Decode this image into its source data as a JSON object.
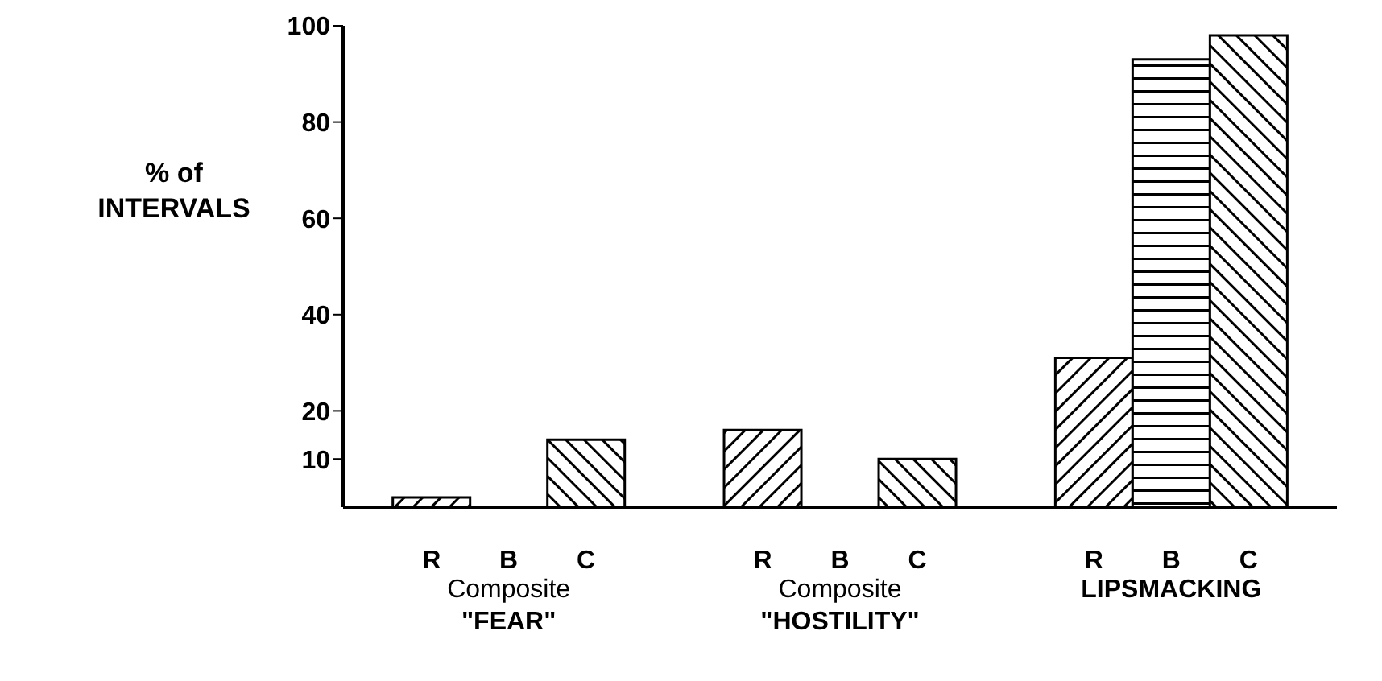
{
  "chart_data": {
    "type": "bar",
    "ylabel": "% of INTERVALS",
    "categories": [
      "Composite \"FEAR\"",
      "Composite \"HOSTILITY\"",
      "LIPSMACKING"
    ],
    "series": [
      {
        "name": "R",
        "color": "#000000",
        "values": [
          2,
          16,
          31
        ]
      },
      {
        "name": "B",
        "color": "#000000",
        "values": [
          0,
          0,
          93
        ]
      },
      {
        "name": "C",
        "color": "#000000",
        "values": [
          14,
          10,
          98
        ]
      }
    ],
    "ylim": [
      0,
      100
    ],
    "yticks": [
      10,
      20,
      40,
      60,
      80,
      100
    ],
    "grid": false,
    "legend": false
  }
}
